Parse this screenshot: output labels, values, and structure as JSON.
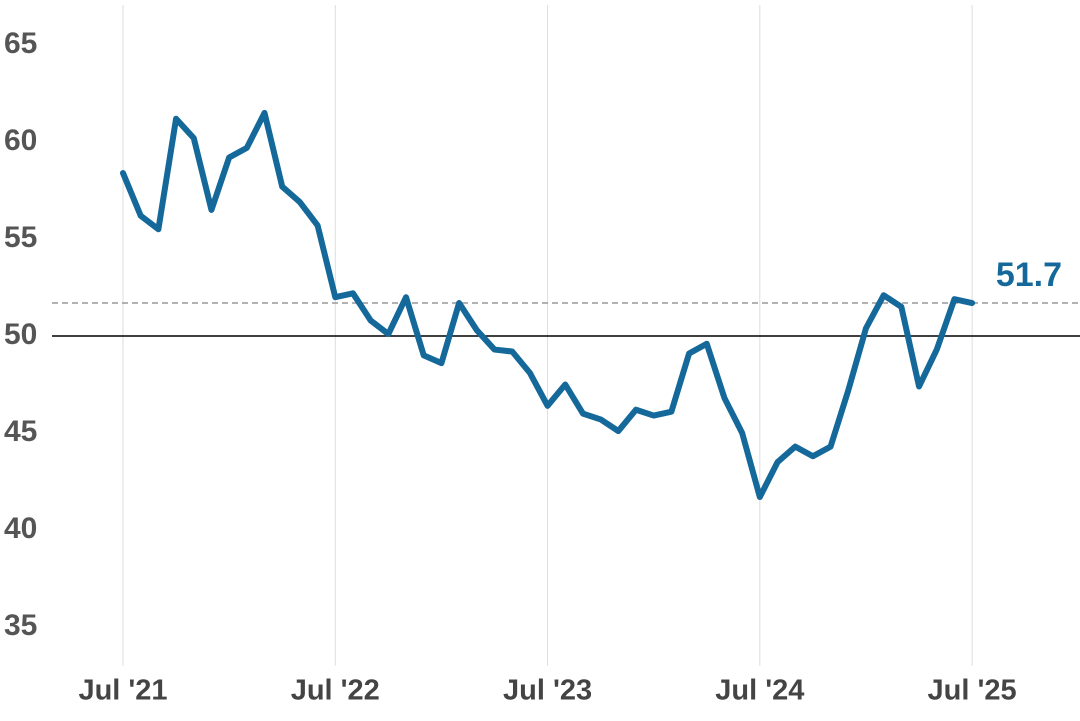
{
  "chart_data": {
    "type": "line",
    "categories": [
      "Jul '21",
      null,
      null,
      null,
      null,
      null,
      null,
      null,
      null,
      null,
      null,
      null,
      "Jul '22",
      null,
      null,
      null,
      null,
      null,
      null,
      null,
      null,
      null,
      null,
      null,
      "Jul '23",
      null,
      null,
      null,
      null,
      null,
      null,
      null,
      null,
      null,
      null,
      null,
      "Jul '24",
      null,
      null,
      null,
      null,
      null,
      null,
      null,
      null,
      null,
      null,
      null,
      "Jul '25"
    ],
    "series": [
      {
        "color": "#14699a",
        "values": [
          58.4,
          56.2,
          55.5,
          61.2,
          60.2,
          56.5,
          59.2,
          59.7,
          61.5,
          57.7,
          56.9,
          55.7,
          52.0,
          52.2,
          50.8,
          50.1,
          52.0,
          49.0,
          48.6,
          51.7,
          50.3,
          49.3,
          49.2,
          48.1,
          46.4,
          47.5,
          46.0,
          45.7,
          45.1,
          46.2,
          45.9,
          46.1,
          49.1,
          49.6,
          46.8,
          45.0,
          41.7,
          43.5,
          44.3,
          43.8,
          44.3,
          47.2,
          50.4,
          52.1,
          51.5,
          47.4,
          49.3,
          51.9,
          51.7
        ]
      }
    ],
    "ylim": [
      33,
      67
    ],
    "yticks": [
      35,
      40,
      45,
      50,
      55,
      60,
      65
    ],
    "reference_line": 50,
    "annotation": 51.7,
    "grid": true
  }
}
